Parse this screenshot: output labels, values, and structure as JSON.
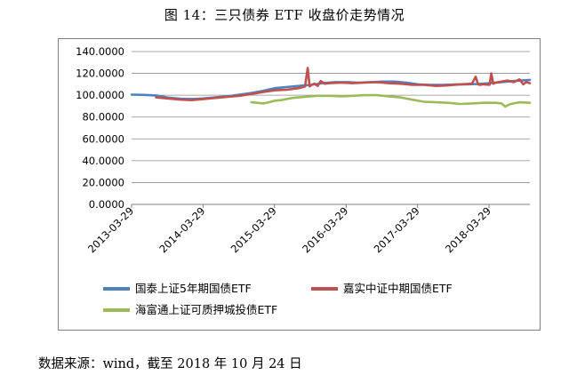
{
  "figure": {
    "title": "图 14：三只债券 ETF 收盘价走势情况",
    "source_note": "数据来源：wind，截至 2018 年 10 月 24 日"
  },
  "chart_data": {
    "type": "line",
    "ylim": [
      0,
      140
    ],
    "y_ticks": [
      "0.0000",
      "20.0000",
      "40.0000",
      "60.0000",
      "80.0000",
      "100.0000",
      "120.0000",
      "140.0000"
    ],
    "x_tick_labels": [
      "2013-03-29",
      "2014-03-29",
      "2015-03-29",
      "2016-03-29",
      "2017-03-29",
      "2018-03-29"
    ],
    "x_range": [
      "2013-03-29",
      "2018-10-24"
    ],
    "grid": "horizontal",
    "legend_position": "bottom",
    "series": [
      {
        "name": "国泰上证5年期国债ETF",
        "color": "#4f81bd",
        "x": [
          "2013-03-29",
          "2013-06-01",
          "2013-08-01",
          "2013-10-01",
          "2013-12-01",
          "2014-02-01",
          "2014-04-01",
          "2014-06-01",
          "2014-08-01",
          "2014-10-01",
          "2014-12-01",
          "2015-02-01",
          "2015-04-01",
          "2015-06-01",
          "2015-08-01",
          "2015-10-01",
          "2015-12-01",
          "2016-02-01",
          "2016-04-01",
          "2016-06-01",
          "2016-08-01",
          "2016-10-01",
          "2016-12-01",
          "2017-02-01",
          "2017-04-01",
          "2017-06-01",
          "2017-08-01",
          "2017-10-01",
          "2017-12-01",
          "2018-02-01",
          "2018-04-01",
          "2018-06-01",
          "2018-08-01",
          "2018-10-24"
        ],
        "y": [
          100.5,
          100.3,
          99.8,
          97.8,
          96.8,
          96.5,
          97.0,
          98.0,
          99.0,
          100.5,
          102.0,
          104.0,
          106.5,
          107.5,
          108.5,
          109.5,
          111.0,
          112.0,
          112.0,
          111.5,
          112.0,
          112.5,
          112.5,
          111.5,
          110.0,
          109.5,
          109.5,
          109.8,
          110.0,
          110.3,
          111.0,
          112.0,
          113.0,
          114.0
        ]
      },
      {
        "name": "嘉实中证中期国债ETF",
        "color": "#c0504d",
        "x": [
          "2013-08-01",
          "2013-10-01",
          "2013-12-01",
          "2014-02-01",
          "2014-04-01",
          "2014-06-01",
          "2014-08-01",
          "2014-10-01",
          "2014-12-01",
          "2015-02-01",
          "2015-04-01",
          "2015-06-01",
          "2015-08-01",
          "2015-09-01",
          "2015-09-15",
          "2015-09-25",
          "2015-10-05",
          "2015-10-20",
          "2015-11-05",
          "2015-11-20",
          "2015-12-10",
          "2016-01-01",
          "2016-03-01",
          "2016-05-01",
          "2016-07-01",
          "2016-09-01",
          "2016-11-01",
          "2017-01-01",
          "2017-03-01",
          "2017-05-01",
          "2017-07-01",
          "2017-09-01",
          "2017-11-01",
          "2018-01-01",
          "2018-01-20",
          "2018-02-01",
          "2018-02-10",
          "2018-03-01",
          "2018-04-01",
          "2018-04-10",
          "2018-04-20",
          "2018-05-01",
          "2018-06-01",
          "2018-07-01",
          "2018-08-01",
          "2018-09-01",
          "2018-09-20",
          "2018-10-05",
          "2018-10-24"
        ],
        "y": [
          98.0,
          97.0,
          96.0,
          95.5,
          96.5,
          97.5,
          98.5,
          99.5,
          101.0,
          103.0,
          104.5,
          105.0,
          106.5,
          108.0,
          125.0,
          108.0,
          109.5,
          110.5,
          108.5,
          113.0,
          110.5,
          111.0,
          111.5,
          111.0,
          111.5,
          112.0,
          111.0,
          110.5,
          109.5,
          109.5,
          108.5,
          109.0,
          110.0,
          110.5,
          117.0,
          110.0,
          109.5,
          110.0,
          109.5,
          120.0,
          110.5,
          111.5,
          112.5,
          113.5,
          112.0,
          114.5,
          110.0,
          112.0,
          111.0
        ]
      },
      {
        "name": "海富通上证可质押城投债ETF",
        "color": "#9bbb59",
        "x": [
          "2014-12-01",
          "2015-01-01",
          "2015-02-01",
          "2015-03-01",
          "2015-04-01",
          "2015-05-01",
          "2015-06-01",
          "2015-07-01",
          "2015-08-01",
          "2015-09-01",
          "2015-10-01",
          "2015-11-01",
          "2015-12-01",
          "2016-01-01",
          "2016-03-01",
          "2016-05-01",
          "2016-07-01",
          "2016-09-01",
          "2016-11-01",
          "2017-01-01",
          "2017-03-01",
          "2017-05-01",
          "2017-07-01",
          "2017-09-01",
          "2017-11-01",
          "2018-01-01",
          "2018-03-01",
          "2018-05-01",
          "2018-06-01",
          "2018-06-20",
          "2018-07-10",
          "2018-08-01",
          "2018-09-01",
          "2018-10-24"
        ],
        "y": [
          93.5,
          93.0,
          92.5,
          93.5,
          95.0,
          95.5,
          96.5,
          97.5,
          98.0,
          98.5,
          99.0,
          99.5,
          99.5,
          99.5,
          99.0,
          99.5,
          100.0,
          100.0,
          99.0,
          98.0,
          96.0,
          94.0,
          93.5,
          93.0,
          92.0,
          92.5,
          93.0,
          93.0,
          92.5,
          89.5,
          91.5,
          92.5,
          93.5,
          93.0
        ]
      }
    ]
  }
}
